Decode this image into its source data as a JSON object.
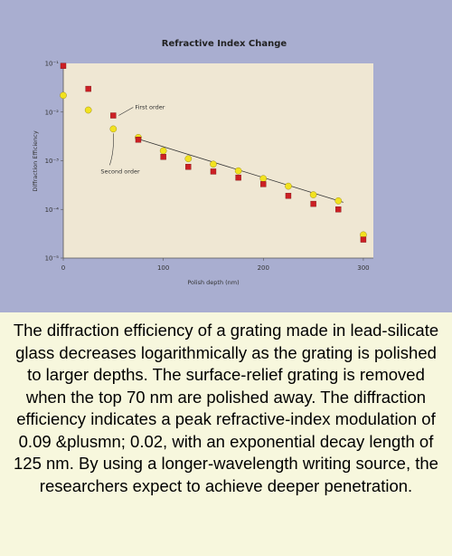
{
  "chart_data": {
    "type": "scatter",
    "title": "Refractive Index Change",
    "xlabel": "Polish depth (nm)",
    "ylabel": "Diffraction Efficiency",
    "xlim": [
      0,
      310
    ],
    "x_ticks": [
      {
        "value": 0,
        "label": "0"
      },
      {
        "value": 100,
        "label": "100"
      },
      {
        "value": 200,
        "label": "200"
      },
      {
        "value": 300,
        "label": "300"
      }
    ],
    "y_scale": "log",
    "ylim": [
      1e-05,
      0.1
    ],
    "y_ticks": [
      {
        "value": 0.1,
        "label": "10⁻¹"
      },
      {
        "value": 0.01,
        "label": "10⁻²"
      },
      {
        "value": 0.001,
        "label": "10⁻³"
      },
      {
        "value": 0.0001,
        "label": "10⁻⁴"
      },
      {
        "value": 1e-05,
        "label": "10⁻⁵"
      }
    ],
    "grid": false,
    "series": [
      {
        "name": "First order",
        "color": "#cc1f24",
        "marker": "square",
        "x": [
          0,
          25,
          50,
          75,
          100,
          125,
          150,
          175,
          200,
          225,
          250,
          275,
          300
        ],
        "y": [
          0.089,
          0.03,
          0.0085,
          0.0027,
          0.0012,
          0.00075,
          0.0006,
          0.00045,
          0.00033,
          0.00019,
          0.00013,
          0.0001,
          2.4e-05
        ]
      },
      {
        "name": "Second order",
        "color": "#f2e21f",
        "marker": "circle",
        "x": [
          0,
          25,
          50,
          75,
          100,
          125,
          150,
          175,
          200,
          225,
          250,
          275,
          300
        ],
        "y": [
          0.022,
          0.011,
          0.0045,
          0.003,
          0.0016,
          0.0011,
          0.00085,
          0.00062,
          0.00043,
          0.0003,
          0.0002,
          0.00015,
          3e-05
        ]
      }
    ],
    "fit_line": {
      "x": [
        75,
        280
      ],
      "y": [
        0.0028,
        0.00014
      ]
    },
    "annotations": [
      {
        "text": "First order",
        "series": 0,
        "point_index": 2
      },
      {
        "text": "Second order",
        "series": 1,
        "point_index": 2
      }
    ],
    "colors": {
      "panel_background": "#a9aed0",
      "plot_background": "#efe7d3",
      "caption_background": "#f7f7dd"
    }
  },
  "caption": "The diffraction efficiency of a grating made in lead-silicate glass decreases logarithmically as the grating is polished to larger depths. The surface-relief grating is removed when the top 70 nm are polished away. The diffraction efficiency indicates a peak refractive-index modulation of 0.09 &plusmn; 0.02, with an exponential decay length of 125 nm. By using a longer-wavelength writing source, the researchers expect to achieve deeper penetration."
}
